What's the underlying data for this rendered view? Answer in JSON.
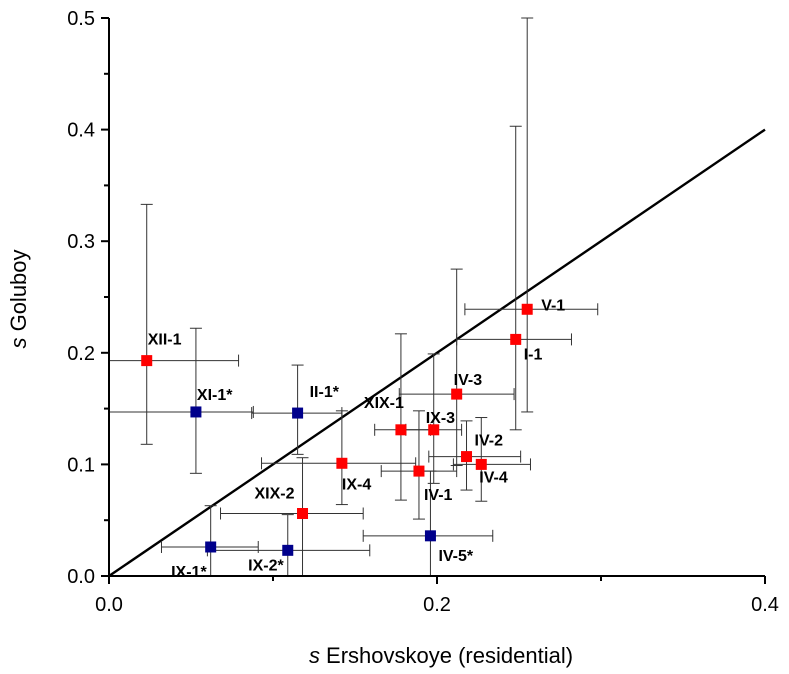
{
  "chart_data": {
    "type": "scatter",
    "title": "",
    "xlabel": {
      "italic": "s",
      "text": " Ershovskoye (residential)"
    },
    "ylabel": {
      "italic": "s",
      "text": " Goluboy"
    },
    "xlim": [
      0.0,
      0.4
    ],
    "ylim": [
      0.0,
      0.5
    ],
    "x_ticks": [
      "0.0",
      "0.2",
      "0.4"
    ],
    "y_ticks": [
      "0.0",
      "0.1",
      "0.2",
      "0.3",
      "0.4",
      "0.5"
    ],
    "reference_line": {
      "x": [
        0.0,
        0.4
      ],
      "y": [
        0.0,
        0.4
      ]
    },
    "grid": false,
    "legend": "none",
    "colors": {
      "red": "#ff0000",
      "blue": "#00008b",
      "axis": "#000000",
      "error": "#333333"
    },
    "points": [
      {
        "label": "XII-1",
        "color": "red",
        "x": 0.023,
        "y": 0.193,
        "xerr": [
          0.0,
          0.079
        ],
        "yerr": [
          0.118,
          0.333
        ]
      },
      {
        "label": "XI-1*",
        "color": "blue",
        "x": 0.053,
        "y": 0.147,
        "xerr": [
          0.0,
          0.088
        ],
        "yerr": [
          0.092,
          0.222
        ]
      },
      {
        "label": "II-1*",
        "color": "blue",
        "x": 0.115,
        "y": 0.146,
        "xerr": [
          0.087,
          0.142
        ],
        "yerr": [
          0.109,
          0.189
        ]
      },
      {
        "label": "XIX-1",
        "color": "red",
        "x": 0.178,
        "y": 0.131,
        "xerr": [
          0.162,
          0.196
        ],
        "yerr": [
          0.068,
          0.217
        ]
      },
      {
        "label": "IX-3",
        "color": "red",
        "x": 0.198,
        "y": 0.131,
        "xerr": [
          0.181,
          0.215
        ],
        "yerr": [
          0.083,
          0.199
        ]
      },
      {
        "label": "IV-3",
        "color": "red",
        "x": 0.212,
        "y": 0.163,
        "xerr": [
          0.177,
          0.247
        ],
        "yerr": [
          0.099,
          0.275
        ]
      },
      {
        "label": "V-1",
        "color": "red",
        "x": 0.255,
        "y": 0.239,
        "xerr": [
          0.217,
          0.298
        ],
        "yerr": [
          0.147,
          0.5
        ]
      },
      {
        "label": "I-1",
        "color": "red",
        "x": 0.248,
        "y": 0.212,
        "xerr": [
          0.212,
          0.282
        ],
        "yerr": [
          0.131,
          0.403
        ]
      },
      {
        "label": "IX-4",
        "color": "red",
        "x": 0.142,
        "y": 0.101,
        "xerr": [
          0.093,
          0.187
        ],
        "yerr": [
          0.064,
          0.148
        ]
      },
      {
        "label": "IV-1",
        "color": "red",
        "x": 0.189,
        "y": 0.094,
        "xerr": [
          0.166,
          0.212
        ],
        "yerr": [
          0.051,
          0.148
        ]
      },
      {
        "label": "IV-2",
        "color": "red",
        "x": 0.218,
        "y": 0.107,
        "xerr": [
          0.195,
          0.251
        ],
        "yerr": [
          0.077,
          0.139
        ]
      },
      {
        "label": "IV-4",
        "color": "red",
        "x": 0.227,
        "y": 0.1,
        "xerr": [
          0.21,
          0.257
        ],
        "yerr": [
          0.067,
          0.142
        ]
      },
      {
        "label": "XIX-2",
        "color": "red",
        "x": 0.118,
        "y": 0.056,
        "xerr": [
          0.068,
          0.155
        ],
        "yerr": [
          0.0,
          0.106
        ]
      },
      {
        "label": "IX-1*",
        "color": "blue",
        "x": 0.062,
        "y": 0.026,
        "xerr": [
          0.032,
          0.091
        ],
        "yerr": [
          0.0,
          0.063
        ]
      },
      {
        "label": "IX-2*",
        "color": "blue",
        "x": 0.109,
        "y": 0.023,
        "xerr": [
          0.06,
          0.159
        ],
        "yerr": [
          0.0,
          0.055
        ]
      },
      {
        "label": "IV-5*",
        "color": "blue",
        "x": 0.196,
        "y": 0.036,
        "xerr": [
          0.155,
          0.234
        ],
        "yerr": [
          0.0,
          0.094
        ]
      }
    ]
  }
}
